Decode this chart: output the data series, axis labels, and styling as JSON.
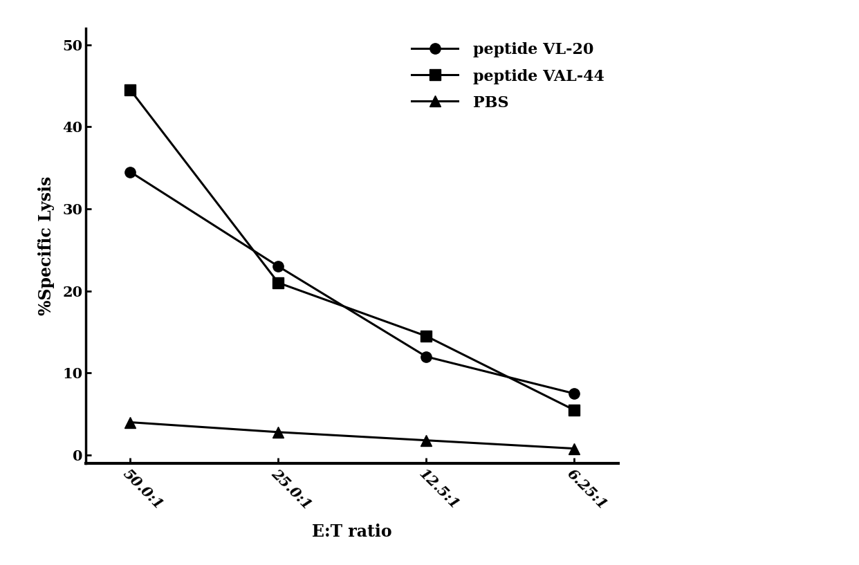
{
  "x_positions": [
    0,
    1,
    2,
    3
  ],
  "x_labels": [
    "50.0:1",
    "25.0:1",
    "12.5:1",
    "6.25:1"
  ],
  "series": [
    {
      "label": "peptide VL-20",
      "y": [
        34.5,
        23.0,
        12.0,
        7.5
      ],
      "color": "#000000",
      "marker": "o",
      "markersize": 11,
      "linewidth": 2.2
    },
    {
      "label": "peptide VAL-44",
      "y": [
        44.5,
        21.0,
        14.5,
        5.5
      ],
      "color": "#000000",
      "marker": "s",
      "markersize": 11,
      "linewidth": 2.2
    },
    {
      "label": "PBS",
      "y": [
        4.0,
        2.8,
        1.8,
        0.8
      ],
      "color": "#000000",
      "marker": "^",
      "markersize": 11,
      "linewidth": 2.2
    }
  ],
  "ylabel": "%Specific Lysis",
  "xlabel": "E:T ratio",
  "ylim": [
    -1,
    52
  ],
  "yticks": [
    0,
    10,
    20,
    30,
    40,
    50
  ],
  "background_color": "#ffffff",
  "legend_fontsize": 16,
  "axis_label_fontsize": 17,
  "tick_fontsize": 15,
  "xtick_rotation": -45
}
